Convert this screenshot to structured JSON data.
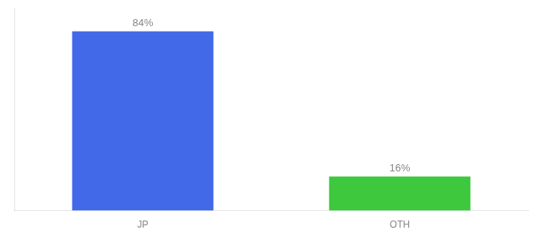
{
  "chart_data": {
    "type": "bar",
    "categories": [
      "JP",
      "OTH"
    ],
    "values": [
      84,
      16
    ],
    "value_labels": [
      "84%",
      "16%"
    ],
    "colors": [
      "#4169E8",
      "#3DC83D"
    ],
    "ylim": [
      0,
      95
    ],
    "grid": false,
    "data_labels": true,
    "tick_labels": "x"
  }
}
